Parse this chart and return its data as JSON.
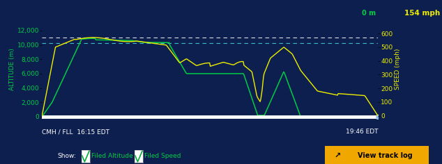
{
  "bg_color": "#0d1f4e",
  "plot_bg_color": "#0d1f4e",
  "altitude_color": "#00cc44",
  "speed_color": "#eeee00",
  "dashed_line_color1": "#ffffff",
  "dashed_line_color2": "#44dddd",
  "xlabel_left": "CMH / FLL  16:15 EDT",
  "xlabel_right": "19:46 EDT",
  "ylabel_left": "ALTITUDE (m)",
  "ylabel_right": "SPEED (mph)",
  "right_top_label_green": "0 m",
  "right_top_label_yellow": "154 mph",
  "yticks_left": [
    0,
    2000,
    4000,
    6000,
    8000,
    10000,
    12000
  ],
  "yticks_right": [
    0,
    100,
    200,
    300,
    400,
    500,
    600
  ],
  "ylim_left": [
    -300,
    13500
  ],
  "ylim_right": [
    -23,
    700
  ],
  "dashed_alt1": 11000,
  "dashed_alt2": 10200,
  "show_label": "Show:",
  "legend_items": [
    "Filed Altitude",
    "Filed Speed"
  ],
  "button_color": "#f0a800",
  "button_text": "View track log",
  "endpoint_color": "#88bbee",
  "axis_fontsize": 6.5,
  "label_fontsize": 6.5
}
